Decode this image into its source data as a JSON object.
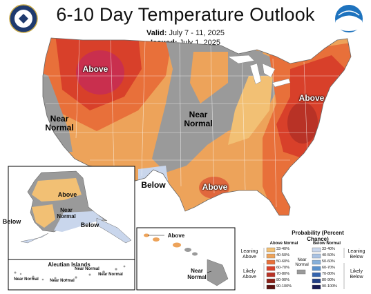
{
  "header": {
    "title": "6-10 Day Temperature Outlook",
    "valid_label": "Valid:",
    "valid_value": "July 7 - 11, 2025",
    "issued_label": "Issued:",
    "issued_value": "July 1, 2025"
  },
  "logos": {
    "left": "department-of-commerce-seal",
    "right": "noaa-logo"
  },
  "map_labels": {
    "conus_above_west": "Above",
    "conus_near_normal_west": "Near Normal",
    "conus_near_normal_central": "Near Normal",
    "conus_below_texas": "Below",
    "conus_above_gulf": "Above",
    "conus_above_east": "Above",
    "alaska_above": "Above",
    "alaska_near_normal": "Near Normal",
    "alaska_below": "Below",
    "alaska_below_outside": "Below",
    "aleutian_title": "Aleutian Islands",
    "aleutian_near_normal_1": "Near Normal",
    "aleutian_near_normal_2": "Near Normal",
    "aleutian_near_normal_3": "Near Normal",
    "aleutian_near_normal_4": "Near Normal",
    "hawaii_above": "Above",
    "hawaii_near_normal": "Near Normal"
  },
  "legend": {
    "title": "Probability (Percent Chance)",
    "above_header": "Above Normal",
    "below_header": "Below Normal",
    "near_normal_label": "Near Normal",
    "leaning_above": "Leaning Above",
    "likely_above": "Likely Above",
    "leaning_below": "Leaning Below",
    "likely_below": "Likely Below",
    "ranges": [
      "33-40%",
      "40-50%",
      "50-60%",
      "60-70%",
      "70-80%",
      "80-90%",
      "90-100%"
    ],
    "above_colors": [
      "#f2c074",
      "#eda35a",
      "#e8703a",
      "#d8402a",
      "#b83226",
      "#8a2018",
      "#5a1210"
    ],
    "below_colors": [
      "#c9d6ec",
      "#a9c2e3",
      "#86b0da",
      "#5a91cc",
      "#3464ae",
      "#223f84",
      "#161a52"
    ],
    "near_normal_color": "#9a9a9a"
  }
}
